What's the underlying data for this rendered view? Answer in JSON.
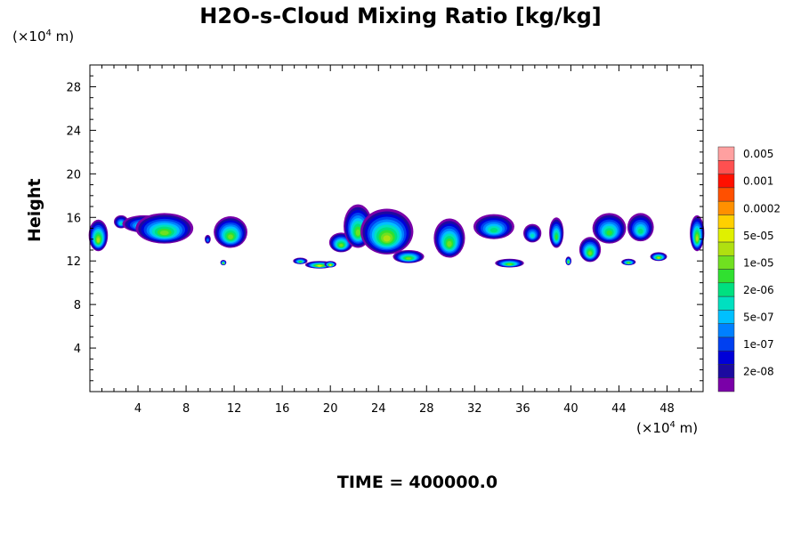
{
  "chart_data": {
    "type": "heatmap",
    "title": "H2O-s-Cloud Mixing Ratio [kg/kg]",
    "xunit": "(×10",
    "xunit_exp": "4",
    "xunit_tail": " m)",
    "yunit": "(×10",
    "yunit_exp": "4",
    "yunit_tail": " m)",
    "ylabel": "Height",
    "xlim": [
      0,
      51
    ],
    "ylim": [
      0,
      30
    ],
    "xticks": [
      4,
      8,
      12,
      16,
      20,
      24,
      28,
      32,
      36,
      40,
      44,
      48
    ],
    "yticks": [
      4,
      8,
      12,
      16,
      20,
      24,
      28
    ],
    "colorbar": {
      "colors": [
        "#7a00a8",
        "#1c0aa0",
        "#0000d8",
        "#0040f0",
        "#0080ff",
        "#00c0ff",
        "#00e0c0",
        "#00e080",
        "#30e030",
        "#70e020",
        "#b0e010",
        "#e0f000",
        "#ffd000",
        "#ff9000",
        "#ff5000",
        "#ff1000",
        "#ff5050",
        "#ffa0a0"
      ],
      "labels": [
        "2e-08",
        "1e-07",
        "5e-07",
        "2e-06",
        "1e-05",
        "5e-05",
        "0.0002",
        "0.001",
        "0.005"
      ]
    },
    "clouds": [
      {
        "x": 0.7,
        "top": 15.8,
        "bottom": 12.9,
        "w": 1.6,
        "peak": 10
      },
      {
        "x": 2.6,
        "top": 16.2,
        "bottom": 15.0,
        "w": 1.2,
        "peak": 6
      },
      {
        "x": 4.5,
        "top": 16.2,
        "bottom": 14.6,
        "w": 3.6,
        "peak": 7
      },
      {
        "x": 6.2,
        "top": 16.4,
        "bottom": 13.6,
        "w": 4.8,
        "peak": 9
      },
      {
        "x": 9.8,
        "top": 14.4,
        "bottom": 13.6,
        "w": 0.5,
        "peak": 4
      },
      {
        "x": 11.7,
        "top": 16.1,
        "bottom": 13.2,
        "w": 2.8,
        "peak": 9
      },
      {
        "x": 11.1,
        "top": 12.1,
        "bottom": 11.6,
        "w": 0.5,
        "peak": 9
      },
      {
        "x": 17.5,
        "top": 12.3,
        "bottom": 11.7,
        "w": 1.2,
        "peak": 8
      },
      {
        "x": 19.1,
        "top": 12.0,
        "bottom": 11.3,
        "w": 2.4,
        "peak": 11
      },
      {
        "x": 20.0,
        "top": 12.0,
        "bottom": 11.4,
        "w": 1.0,
        "peak": 11
      },
      {
        "x": 20.9,
        "top": 14.6,
        "bottom": 12.8,
        "w": 2.0,
        "peak": 9
      },
      {
        "x": 22.3,
        "top": 17.2,
        "bottom": 13.2,
        "w": 2.4,
        "peak": 9
      },
      {
        "x": 24.7,
        "top": 16.8,
        "bottom": 12.6,
        "w": 4.4,
        "peak": 10
      },
      {
        "x": 26.5,
        "top": 13.0,
        "bottom": 11.8,
        "w": 2.6,
        "peak": 9
      },
      {
        "x": 29.9,
        "top": 15.9,
        "bottom": 12.3,
        "w": 2.6,
        "peak": 9
      },
      {
        "x": 33.6,
        "top": 16.3,
        "bottom": 14.0,
        "w": 3.4,
        "peak": 7
      },
      {
        "x": 34.9,
        "top": 12.2,
        "bottom": 11.4,
        "w": 2.4,
        "peak": 9
      },
      {
        "x": 36.8,
        "top": 15.4,
        "bottom": 13.7,
        "w": 1.5,
        "peak": 6
      },
      {
        "x": 38.8,
        "top": 16.0,
        "bottom": 13.2,
        "w": 1.2,
        "peak": 8
      },
      {
        "x": 39.8,
        "top": 12.4,
        "bottom": 11.6,
        "w": 0.5,
        "peak": 9
      },
      {
        "x": 41.6,
        "top": 14.2,
        "bottom": 11.9,
        "w": 1.8,
        "peak": 9
      },
      {
        "x": 43.2,
        "top": 16.4,
        "bottom": 13.6,
        "w": 2.8,
        "peak": 8
      },
      {
        "x": 45.8,
        "top": 16.4,
        "bottom": 13.8,
        "w": 2.2,
        "peak": 7
      },
      {
        "x": 44.8,
        "top": 12.2,
        "bottom": 11.6,
        "w": 1.2,
        "peak": 9
      },
      {
        "x": 47.3,
        "top": 12.8,
        "bottom": 12.0,
        "w": 1.4,
        "peak": 10
      },
      {
        "x": 50.5,
        "top": 16.2,
        "bottom": 12.9,
        "w": 1.2,
        "peak": 10
      }
    ]
  },
  "footer": {
    "time_label": "TIME =",
    "time_value": "400000.0"
  }
}
